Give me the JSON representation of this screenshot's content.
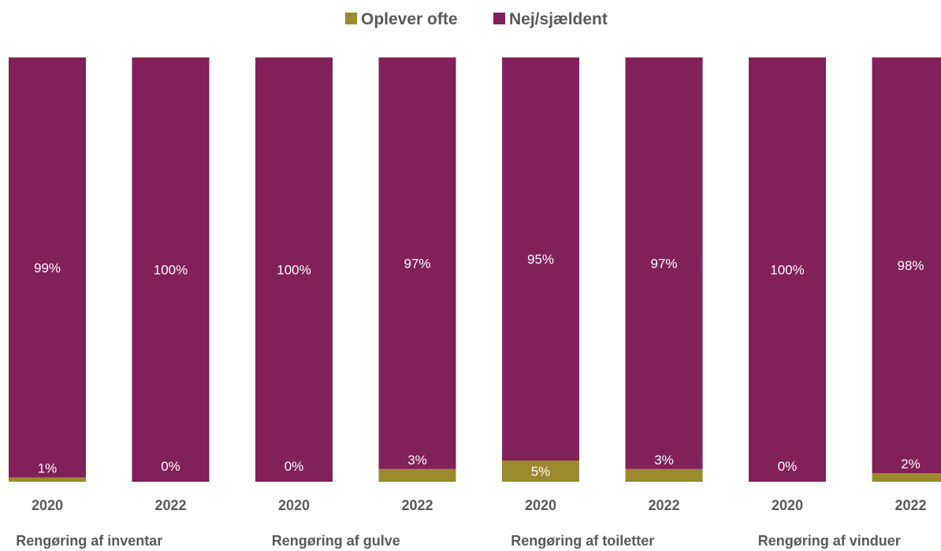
{
  "chart_data": {
    "type": "bar",
    "stacked": true,
    "normalized_percent": true,
    "legend_position": "top",
    "grid": false,
    "ylim": [
      0,
      100
    ],
    "groups": [
      "Rengøring af inventar",
      "Rengøring af gulve",
      "Rengøring af toiletter",
      "Rengøring af vinduer"
    ],
    "categories": [
      "2020",
      "2022",
      "2020",
      "2022",
      "2020",
      "2022",
      "2020",
      "2022"
    ],
    "series": [
      {
        "name": "Oplever ofte",
        "color": "#9b8a2e",
        "values": [
          1,
          0,
          0,
          3,
          5,
          3,
          0,
          2
        ],
        "labels": [
          "1%",
          "0%",
          "0%",
          "3%",
          "5%",
          "3%",
          "0%",
          "2%"
        ]
      },
      {
        "name": "Nej/sjældent",
        "color": "#82205a",
        "values": [
          99,
          100,
          100,
          97,
          95,
          97,
          100,
          98
        ],
        "labels": [
          "99%",
          "100%",
          "100%",
          "97%",
          "95%",
          "97%",
          "100%",
          "98%"
        ]
      }
    ]
  }
}
